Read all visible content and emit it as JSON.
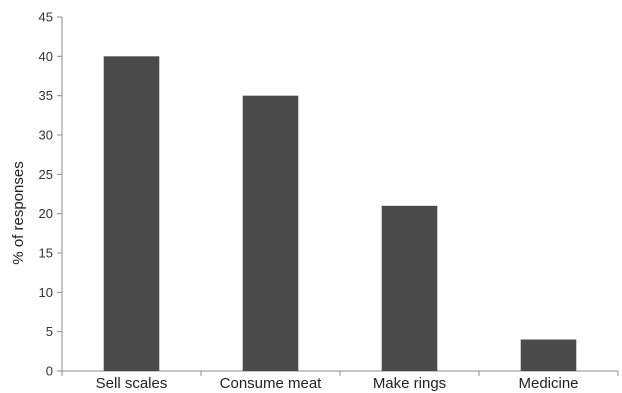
{
  "chart_data": {
    "type": "bar",
    "categories": [
      "Sell scales",
      "Consume meat",
      "Make rings",
      "Medicine"
    ],
    "values": [
      40,
      35,
      21,
      4
    ],
    "title": "",
    "xlabel": "",
    "ylabel": "% of responses",
    "ylim": [
      0,
      45
    ],
    "yticks": [
      0,
      5,
      10,
      15,
      20,
      25,
      30,
      35,
      40,
      45
    ],
    "grid": false,
    "legend": "none",
    "bar_color": "#4a4a4a",
    "axis_color": "#8c8c8c"
  }
}
